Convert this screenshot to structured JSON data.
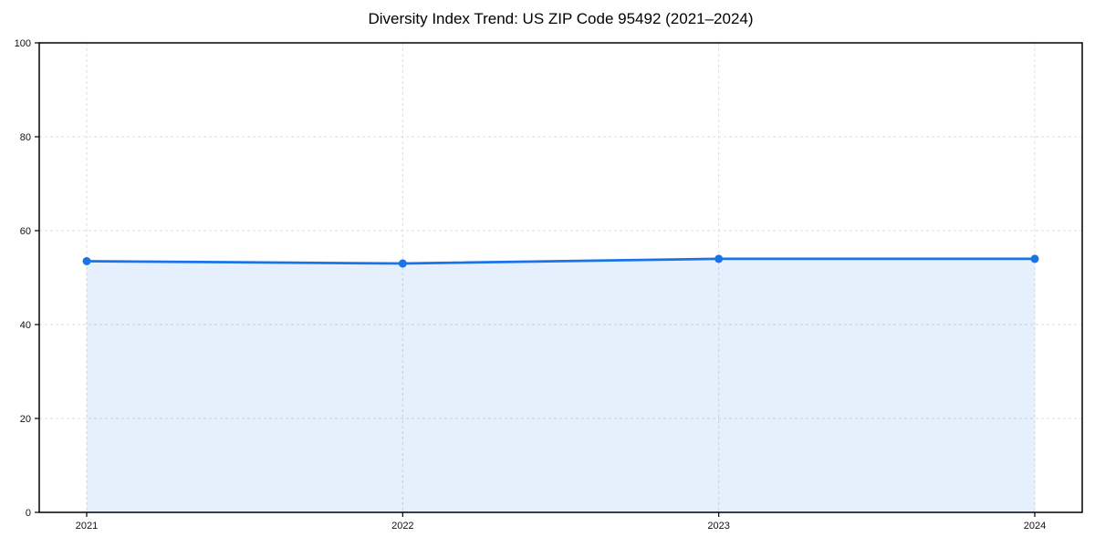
{
  "chart_data": {
    "type": "area",
    "title": "Diversity Index Trend: US ZIP Code 95492 (2021–2024)",
    "x": [
      "2021",
      "2022",
      "2023",
      "2024"
    ],
    "series": [
      {
        "name": "Diversity Index",
        "values": [
          53.5,
          53.0,
          54.0,
          54.0
        ]
      }
    ],
    "xlabel": "",
    "ylabel": "",
    "ylim": [
      0,
      100
    ],
    "yticks": [
      0,
      20,
      40,
      60,
      80,
      100
    ],
    "grid": true,
    "grid_style": "dashed",
    "legend": "none",
    "colors": {
      "line": "#1a73e8",
      "marker": "#1a73e8",
      "area_fill": "rgba(26,115,232,0.11)",
      "grid": "#dcdcdc",
      "axis": "#000000",
      "title_text": "#000000",
      "tick_text": "#111111",
      "background": "#ffffff"
    }
  }
}
